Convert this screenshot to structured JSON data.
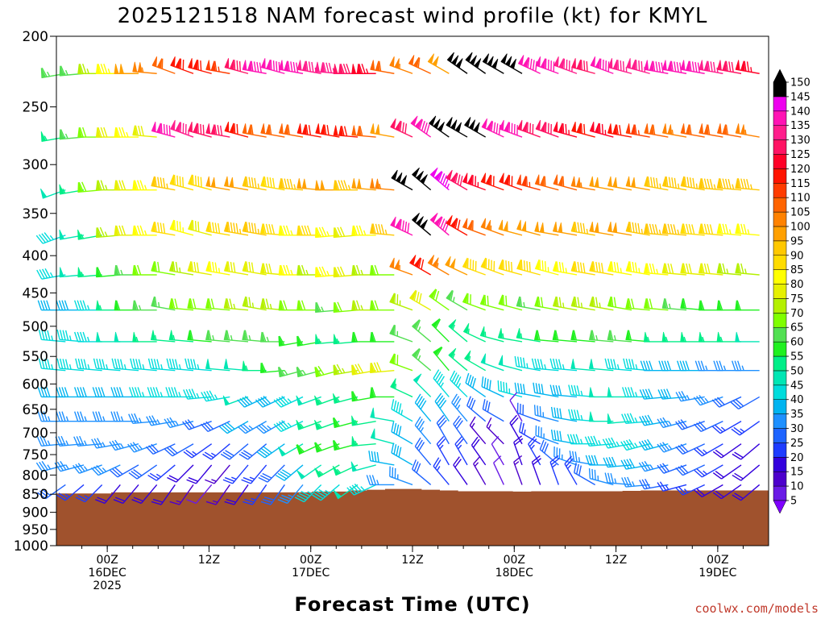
{
  "chart_data": {
    "type": "wind_barb_profile",
    "title": "2025121518 NAM forecast wind profile (kt) for KMYL",
    "xlabel": "Forecast Time (UTC)",
    "ylabel": "",
    "credit": "coolwx.com/models",
    "yaxis": {
      "scale": "log",
      "range": [
        200,
        1000
      ],
      "ticks": [
        200,
        250,
        300,
        350,
        400,
        450,
        500,
        550,
        600,
        650,
        700,
        750,
        800,
        850,
        900,
        950,
        1000
      ],
      "tick_labels": [
        "200",
        "250",
        "300",
        "350",
        "400",
        "450",
        "500",
        "550",
        "600",
        "650",
        "700",
        "750",
        "800",
        "850",
        "900",
        "950",
        "1000"
      ]
    },
    "xaxis": {
      "range_hours": [
        0,
        84
      ],
      "interval_hours": 3,
      "ticks": [
        {
          "hour": 6,
          "labels": [
            "00Z",
            "16DEC",
            "2025"
          ]
        },
        {
          "hour": 18,
          "labels": [
            "12Z"
          ]
        },
        {
          "hour": 30,
          "labels": [
            "00Z",
            "17DEC"
          ]
        },
        {
          "hour": 42,
          "labels": [
            "12Z"
          ]
        },
        {
          "hour": 54,
          "labels": [
            "00Z",
            "18DEC"
          ]
        },
        {
          "hour": 66,
          "labels": [
            "12Z"
          ]
        },
        {
          "hour": 78,
          "labels": [
            "00Z",
            "19DEC"
          ]
        }
      ]
    },
    "levels": [
      225,
      275,
      325,
      375,
      425,
      475,
      525,
      575,
      625,
      675,
      725,
      775,
      825
    ],
    "speeds_kt": [
      [
        65,
        65,
        75,
        85,
        100,
        105,
        110,
        120,
        120,
        115,
        130,
        140,
        140,
        140,
        135,
        135,
        130,
        125,
        110,
        105,
        110,
        100,
        150,
        150,
        150,
        150,
        140,
        140,
        135,
        130,
        140,
        135,
        135,
        140,
        140,
        140,
        135,
        130,
        125
      ],
      [
        55,
        65,
        70,
        80,
        85,
        80,
        140,
        135,
        130,
        130,
        120,
        110,
        110,
        110,
        120,
        120,
        120,
        110,
        100,
        130,
        140,
        150,
        150,
        150,
        140,
        140,
        130,
        130,
        125,
        120,
        125,
        120,
        115,
        110,
        105,
        110,
        110,
        110,
        105
      ],
      [
        50,
        55,
        70,
        75,
        80,
        85,
        95,
        90,
        90,
        100,
        100,
        95,
        90,
        95,
        100,
        100,
        95,
        100,
        105,
        150,
        150,
        145,
        130,
        125,
        120,
        120,
        115,
        110,
        110,
        105,
        100,
        100,
        100,
        95,
        95,
        95,
        95,
        95,
        95
      ],
      [
        45,
        50,
        55,
        75,
        80,
        85,
        90,
        85,
        80,
        90,
        95,
        95,
        90,
        85,
        90,
        85,
        80,
        85,
        95,
        140,
        150,
        140,
        120,
        110,
        105,
        100,
        100,
        100,
        100,
        95,
        100,
        100,
        95,
        95,
        95,
        90,
        90,
        85,
        85
      ],
      [
        45,
        50,
        55,
        60,
        65,
        70,
        70,
        75,
        80,
        85,
        80,
        80,
        80,
        85,
        75,
        85,
        80,
        75,
        70,
        105,
        120,
        105,
        100,
        90,
        90,
        90,
        90,
        85,
        85,
        90,
        90,
        85,
        85,
        85,
        80,
        80,
        80,
        75,
        75
      ],
      [
        40,
        40,
        45,
        55,
        60,
        65,
        65,
        70,
        70,
        70,
        75,
        75,
        75,
        70,
        70,
        65,
        70,
        75,
        70,
        75,
        80,
        70,
        65,
        70,
        70,
        70,
        65,
        70,
        75,
        75,
        75,
        70,
        70,
        70,
        65,
        60,
        60,
        60,
        60
      ],
      [
        45,
        45,
        45,
        50,
        50,
        55,
        55,
        55,
        60,
        65,
        65,
        65,
        65,
        60,
        60,
        55,
        55,
        60,
        60,
        65,
        65,
        60,
        55,
        55,
        55,
        55,
        55,
        60,
        60,
        60,
        65,
        65,
        60,
        55,
        55,
        55,
        55,
        55,
        50
      ],
      [
        45,
        45,
        45,
        45,
        45,
        45,
        45,
        45,
        45,
        50,
        50,
        55,
        60,
        65,
        65,
        70,
        75,
        80,
        80,
        70,
        65,
        60,
        55,
        55,
        50,
        50,
        45,
        45,
        45,
        50,
        50,
        45,
        45,
        40,
        40,
        40,
        35,
        35,
        35
      ],
      [
        40,
        40,
        40,
        40,
        40,
        45,
        45,
        45,
        45,
        45,
        50,
        40,
        40,
        45,
        50,
        55,
        55,
        60,
        60,
        55,
        50,
        45,
        45,
        40,
        40,
        45,
        40,
        40,
        40,
        45,
        50,
        50,
        45,
        40,
        40,
        35,
        35,
        30,
        30
      ],
      [
        35,
        35,
        35,
        35,
        35,
        35,
        35,
        35,
        30,
        30,
        40,
        35,
        35,
        45,
        55,
        55,
        60,
        55,
        50,
        45,
        40,
        40,
        35,
        30,
        30,
        10,
        30,
        35,
        40,
        45,
        50,
        50,
        45,
        40,
        35,
        30,
        30,
        25,
        25
      ],
      [
        35,
        35,
        35,
        35,
        35,
        35,
        30,
        30,
        25,
        25,
        30,
        30,
        40,
        50,
        60,
        60,
        60,
        55,
        50,
        40,
        35,
        30,
        30,
        15,
        15,
        20,
        25,
        35,
        40,
        45,
        45,
        45,
        45,
        40,
        35,
        30,
        25,
        20,
        20
      ],
      [
        35,
        35,
        35,
        35,
        30,
        30,
        25,
        20,
        20,
        15,
        25,
        25,
        30,
        40,
        50,
        55,
        55,
        50,
        40,
        40,
        30,
        25,
        25,
        20,
        10,
        20,
        25,
        30,
        35,
        35,
        40,
        40,
        40,
        35,
        30,
        30,
        25,
        20,
        20
      ],
      [
        30,
        25,
        25,
        20,
        20,
        20,
        20,
        15,
        10,
        15,
        20,
        25,
        30,
        35,
        45,
        45,
        50,
        45,
        35,
        35,
        30,
        25,
        20,
        15,
        10,
        15,
        20,
        25,
        25,
        30,
        35,
        35,
        35,
        30,
        25,
        25,
        20,
        20,
        20
      ]
    ],
    "directions_deg": [
      [
        260,
        265,
        270,
        270,
        270,
        275,
        290,
        290,
        285,
        280,
        285,
        280,
        285,
        280,
        280,
        275,
        270,
        270,
        280,
        290,
        295,
        300,
        305,
        305,
        300,
        300,
        295,
        290,
        290,
        285,
        290,
        285,
        285,
        280,
        280,
        280,
        280,
        280,
        280
      ],
      [
        260,
        265,
        270,
        270,
        270,
        275,
        285,
        290,
        285,
        280,
        285,
        280,
        280,
        280,
        280,
        280,
        275,
        275,
        280,
        295,
        305,
        305,
        300,
        300,
        295,
        290,
        290,
        290,
        285,
        285,
        285,
        280,
        280,
        280,
        280,
        280,
        280,
        280,
        280
      ],
      [
        250,
        260,
        265,
        270,
        270,
        270,
        280,
        285,
        285,
        280,
        280,
        280,
        280,
        275,
        275,
        270,
        270,
        275,
        275,
        300,
        310,
        310,
        300,
        290,
        290,
        290,
        285,
        285,
        285,
        280,
        280,
        280,
        280,
        280,
        280,
        280,
        275,
        275,
        275
      ],
      [
        250,
        260,
        260,
        265,
        270,
        270,
        280,
        285,
        285,
        280,
        280,
        280,
        275,
        270,
        270,
        265,
        265,
        270,
        275,
        295,
        310,
        310,
        300,
        290,
        290,
        285,
        285,
        280,
        280,
        280,
        280,
        280,
        280,
        275,
        275,
        275,
        275,
        275,
        275
      ],
      [
        260,
        265,
        265,
        265,
        270,
        270,
        280,
        280,
        280,
        280,
        280,
        280,
        275,
        270,
        270,
        265,
        265,
        270,
        270,
        290,
        300,
        300,
        295,
        290,
        290,
        285,
        285,
        285,
        280,
        280,
        280,
        280,
        280,
        275,
        275,
        275,
        275,
        275,
        275
      ],
      [
        270,
        270,
        270,
        270,
        270,
        270,
        280,
        275,
        275,
        275,
        275,
        280,
        275,
        270,
        270,
        265,
        265,
        270,
        270,
        290,
        300,
        305,
        300,
        290,
        285,
        285,
        280,
        280,
        280,
        280,
        280,
        280,
        275,
        275,
        275,
        275,
        270,
        270,
        270
      ],
      [
        275,
        275,
        270,
        270,
        270,
        270,
        275,
        275,
        275,
        275,
        275,
        275,
        270,
        260,
        260,
        265,
        265,
        270,
        270,
        290,
        310,
        315,
        310,
        295,
        285,
        280,
        280,
        275,
        275,
        275,
        275,
        275,
        275,
        270,
        270,
        270,
        270,
        270,
        270
      ],
      [
        275,
        275,
        275,
        275,
        275,
        275,
        275,
        275,
        275,
        275,
        275,
        270,
        265,
        255,
        255,
        255,
        260,
        260,
        265,
        290,
        310,
        320,
        310,
        300,
        290,
        285,
        280,
        275,
        275,
        275,
        275,
        275,
        275,
        270,
        270,
        270,
        270,
        270,
        270
      ],
      [
        270,
        270,
        270,
        270,
        270,
        270,
        270,
        270,
        265,
        260,
        250,
        245,
        245,
        245,
        250,
        250,
        255,
        260,
        270,
        295,
        315,
        320,
        315,
        305,
        295,
        285,
        280,
        280,
        275,
        275,
        270,
        270,
        270,
        265,
        265,
        260,
        250,
        245,
        240
      ],
      [
        270,
        270,
        270,
        270,
        270,
        265,
        260,
        255,
        250,
        245,
        240,
        240,
        240,
        245,
        250,
        250,
        255,
        260,
        280,
        300,
        320,
        325,
        320,
        310,
        300,
        330,
        290,
        285,
        280,
        275,
        270,
        265,
        265,
        260,
        255,
        250,
        245,
        240,
        235
      ],
      [
        265,
        265,
        265,
        260,
        255,
        250,
        245,
        240,
        235,
        230,
        230,
        230,
        235,
        240,
        245,
        250,
        255,
        265,
        285,
        300,
        320,
        330,
        325,
        320,
        315,
        330,
        300,
        290,
        280,
        270,
        265,
        260,
        255,
        255,
        250,
        245,
        240,
        235,
        230
      ],
      [
        255,
        255,
        250,
        245,
        240,
        235,
        230,
        225,
        220,
        220,
        220,
        220,
        225,
        230,
        235,
        240,
        245,
        255,
        280,
        300,
        320,
        330,
        330,
        325,
        330,
        340,
        330,
        310,
        290,
        280,
        270,
        265,
        260,
        255,
        250,
        245,
        240,
        235,
        230
      ],
      [
        235,
        230,
        225,
        220,
        220,
        220,
        215,
        215,
        220,
        215,
        215,
        215,
        215,
        220,
        225,
        230,
        235,
        245,
        270,
        290,
        310,
        320,
        325,
        330,
        335,
        340,
        340,
        340,
        330,
        300,
        285,
        275,
        265,
        260,
        255,
        245,
        240,
        235,
        230
      ]
    ],
    "terrain_pressure_hpa": [
      848,
      848,
      848,
      845,
      845,
      845,
      845,
      845,
      845,
      845,
      845,
      845,
      845,
      845,
      843,
      843,
      840,
      838,
      836,
      836,
      838,
      840,
      842,
      842,
      842,
      843,
      842,
      842,
      842,
      842,
      842,
      841,
      840,
      840,
      840,
      840,
      840,
      840,
      840
    ],
    "colorbar": {
      "levels": [
        5,
        10,
        15,
        20,
        25,
        30,
        35,
        40,
        45,
        50,
        55,
        60,
        65,
        70,
        75,
        80,
        85,
        90,
        95,
        100,
        105,
        110,
        115,
        120,
        125,
        130,
        135,
        140,
        145,
        150
      ],
      "colors": [
        "#7f00ff",
        "#6a1be6",
        "#4d00cc",
        "#3300dd",
        "#1e3cff",
        "#1e64ff",
        "#1e90ff",
        "#00b4f0",
        "#00dcdc",
        "#00e6b4",
        "#00ee88",
        "#20f020",
        "#52e052",
        "#7fff00",
        "#b4f000",
        "#e6f000",
        "#ffff00",
        "#ffdc00",
        "#ffc800",
        "#ffa000",
        "#ff8200",
        "#ff6400",
        "#ff3c00",
        "#ff1400",
        "#ff0028",
        "#ff1464",
        "#ff1e8c",
        "#ff14b4",
        "#ee00ee",
        "#000000"
      ],
      "tick_labels": [
        "5",
        "10",
        "15",
        "20",
        "25",
        "30",
        "35",
        "40",
        "45",
        "50",
        "55",
        "60",
        "65",
        "70",
        "75",
        "80",
        "85",
        "90",
        "95",
        "100",
        "105",
        "110",
        "115",
        "120",
        "125",
        "130",
        "135",
        "140",
        "145",
        "150"
      ]
    }
  }
}
